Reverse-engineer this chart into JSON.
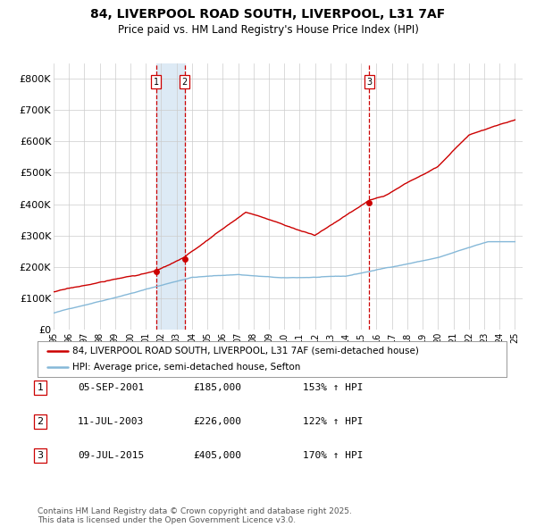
{
  "title": "84, LIVERPOOL ROAD SOUTH, LIVERPOOL, L31 7AF",
  "subtitle": "Price paid vs. HM Land Registry's House Price Index (HPI)",
  "ytick_labels": [
    "£0",
    "£100K",
    "£200K",
    "£300K",
    "£400K",
    "£500K",
    "£600K",
    "£700K",
    "£800K"
  ],
  "yticks": [
    0,
    100000,
    200000,
    300000,
    400000,
    500000,
    600000,
    700000,
    800000
  ],
  "ylim": [
    0,
    850000
  ],
  "xlim": [
    1995,
    2025.5
  ],
  "legend_house_label": "84, LIVERPOOL ROAD SOUTH, LIVERPOOL, L31 7AF (semi-detached house)",
  "legend_hpi_label": "HPI: Average price, semi-detached house, Sefton",
  "sale_color": "#cc0000",
  "hpi_color": "#85b8d8",
  "vline_color": "#cc0000",
  "vspan_color": "#ddeaf5",
  "marker_color": "#cc0000",
  "sales": [
    {
      "date_year": 2001.67,
      "price": 185000,
      "label": "1"
    },
    {
      "date_year": 2003.52,
      "price": 226000,
      "label": "2"
    },
    {
      "date_year": 2015.52,
      "price": 405000,
      "label": "3"
    }
  ],
  "sale_label_items": [
    {
      "num": "1",
      "date": "05-SEP-2001",
      "price": "£185,000",
      "pct": "153% ↑ HPI"
    },
    {
      "num": "2",
      "date": "11-JUL-2003",
      "price": "£226,000",
      "pct": "122% ↑ HPI"
    },
    {
      "num": "3",
      "date": "09-JUL-2015",
      "price": "£405,000",
      "pct": "170% ↑ HPI"
    }
  ],
  "footnote": "Contains HM Land Registry data © Crown copyright and database right 2025.\nThis data is licensed under the Open Government Licence v3.0.",
  "background_color": "#ffffff",
  "grid_color": "#cccccc",
  "hpi_seed": 42,
  "house_seed": 17
}
